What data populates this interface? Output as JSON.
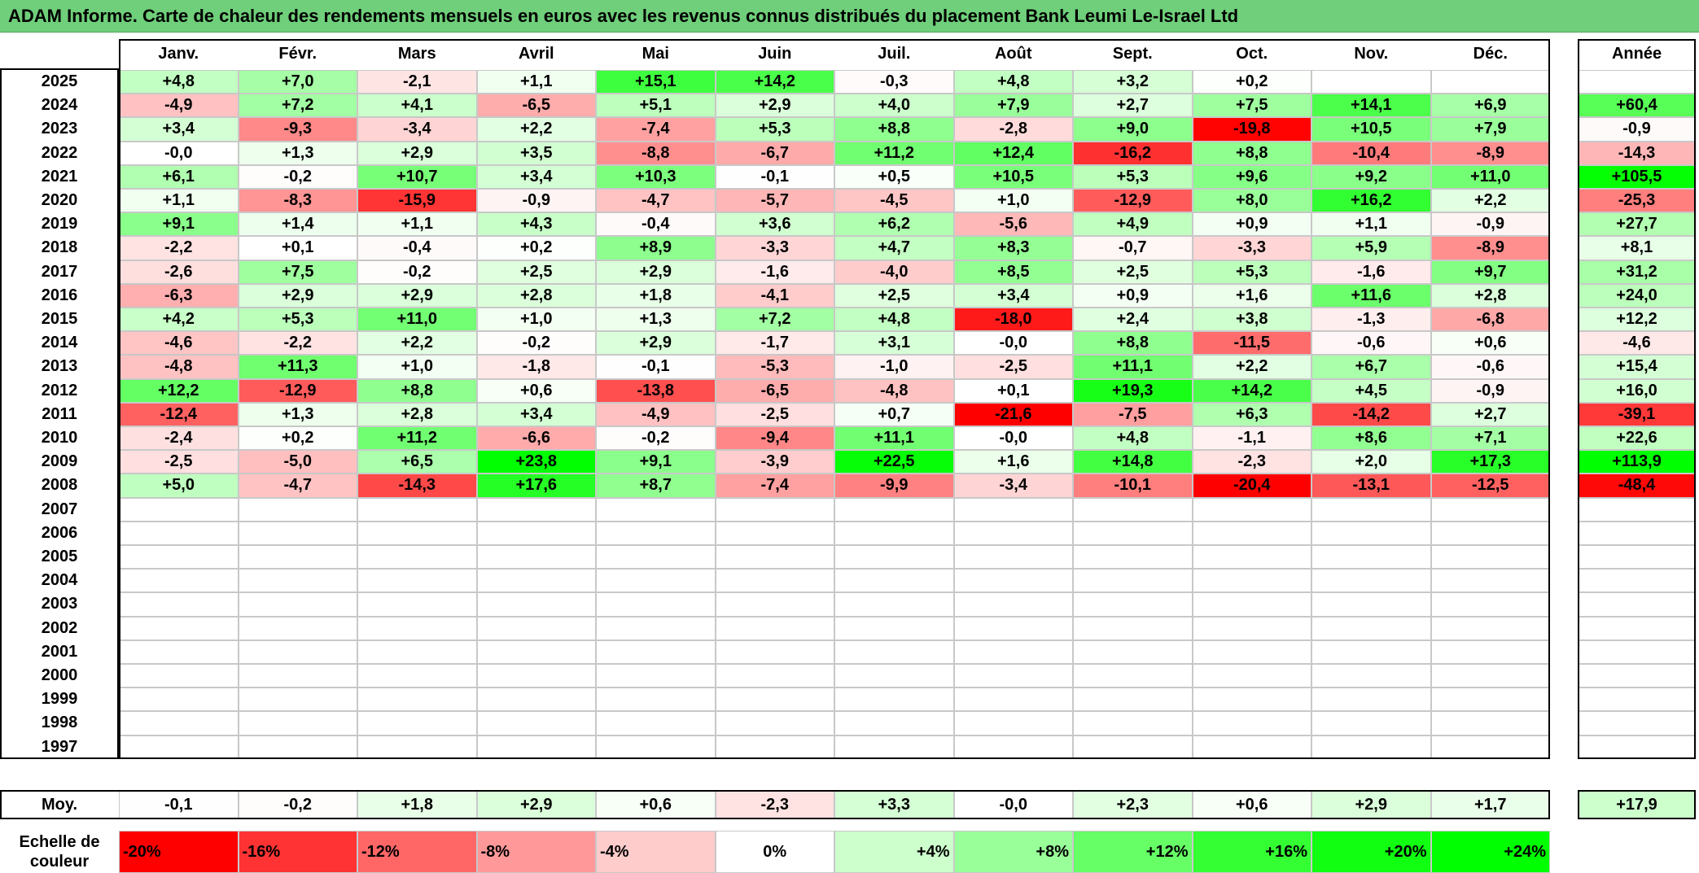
{
  "title": "ADAM Informe. Carte de chaleur des rendements mensuels en euros avec les revenus connus distribués du placement Bank Leumi Le-Israel Ltd",
  "chart_data": {
    "type": "heatmap",
    "months": [
      "Janv.",
      "Févr.",
      "Mars",
      "Avril",
      "Mai",
      "Juin",
      "Juil.",
      "Août",
      "Sept.",
      "Oct.",
      "Nov.",
      "Déc."
    ],
    "year_header": "Année",
    "rows": [
      {
        "year": "2025",
        "values": [
          "+4,8",
          "+7,0",
          "-2,1",
          "+1,1",
          "+15,1",
          "+14,2",
          "-0,3",
          "+4,8",
          "+3,2",
          "+0,2",
          "",
          ""
        ],
        "annual": ""
      },
      {
        "year": "2024",
        "values": [
          "-4,9",
          "+7,2",
          "+4,1",
          "-6,5",
          "+5,1",
          "+2,9",
          "+4,0",
          "+7,9",
          "+2,7",
          "+7,5",
          "+14,1",
          "+6,9"
        ],
        "annual": "+60,4"
      },
      {
        "year": "2023",
        "values": [
          "+3,4",
          "-9,3",
          "-3,4",
          "+2,2",
          "-7,4",
          "+5,3",
          "+8,8",
          "-2,8",
          "+9,0",
          "-19,8",
          "+10,5",
          "+7,9"
        ],
        "annual": "-0,9"
      },
      {
        "year": "2022",
        "values": [
          "-0,0",
          "+1,3",
          "+2,9",
          "+3,5",
          "-8,8",
          "-6,7",
          "+11,2",
          "+12,4",
          "-16,2",
          "+8,8",
          "-10,4",
          "-8,9"
        ],
        "annual": "-14,3"
      },
      {
        "year": "2021",
        "values": [
          "+6,1",
          "-0,2",
          "+10,7",
          "+3,4",
          "+10,3",
          "-0,1",
          "+0,5",
          "+10,5",
          "+5,3",
          "+9,6",
          "+9,2",
          "+11,0"
        ],
        "annual": "+105,5"
      },
      {
        "year": "2020",
        "values": [
          "+1,1",
          "-8,3",
          "-15,9",
          "-0,9",
          "-4,7",
          "-5,7",
          "-4,5",
          "+1,0",
          "-12,9",
          "+8,0",
          "+16,2",
          "+2,2"
        ],
        "annual": "-25,3"
      },
      {
        "year": "2019",
        "values": [
          "+9,1",
          "+1,4",
          "+1,1",
          "+4,3",
          "-0,4",
          "+3,6",
          "+6,2",
          "-5,6",
          "+4,9",
          "+0,9",
          "+1,1",
          "-0,9"
        ],
        "annual": "+27,7"
      },
      {
        "year": "2018",
        "values": [
          "-2,2",
          "+0,1",
          "-0,4",
          "+0,2",
          "+8,9",
          "-3,3",
          "+4,7",
          "+8,3",
          "-0,7",
          "-3,3",
          "+5,9",
          "-8,9"
        ],
        "annual": "+8,1"
      },
      {
        "year": "2017",
        "values": [
          "-2,6",
          "+7,5",
          "-0,2",
          "+2,5",
          "+2,9",
          "-1,6",
          "-4,0",
          "+8,5",
          "+2,5",
          "+5,3",
          "-1,6",
          "+9,7"
        ],
        "annual": "+31,2"
      },
      {
        "year": "2016",
        "values": [
          "-6,3",
          "+2,9",
          "+2,9",
          "+2,8",
          "+1,8",
          "-4,1",
          "+2,5",
          "+3,4",
          "+0,9",
          "+1,6",
          "+11,6",
          "+2,8"
        ],
        "annual": "+24,0"
      },
      {
        "year": "2015",
        "values": [
          "+4,2",
          "+5,3",
          "+11,0",
          "+1,0",
          "+1,3",
          "+7,2",
          "+4,8",
          "-18,0",
          "+2,4",
          "+3,8",
          "-1,3",
          "-6,8"
        ],
        "annual": "+12,2"
      },
      {
        "year": "2014",
        "values": [
          "-4,6",
          "-2,2",
          "+2,2",
          "-0,2",
          "+2,9",
          "-1,7",
          "+3,1",
          "-0,0",
          "+8,8",
          "-11,5",
          "-0,6",
          "+0,6"
        ],
        "annual": "-4,6"
      },
      {
        "year": "2013",
        "values": [
          "-4,8",
          "+11,3",
          "+1,0",
          "-1,8",
          "-0,1",
          "-5,3",
          "-1,0",
          "-2,5",
          "+11,1",
          "+2,2",
          "+6,7",
          "-0,6"
        ],
        "annual": "+15,4"
      },
      {
        "year": "2012",
        "values": [
          "+12,2",
          "-12,9",
          "+8,8",
          "+0,6",
          "-13,8",
          "-6,5",
          "-4,8",
          "+0,1",
          "+19,3",
          "+14,2",
          "+4,5",
          "-0,9"
        ],
        "annual": "+16,0"
      },
      {
        "year": "2011",
        "values": [
          "-12,4",
          "+1,3",
          "+2,8",
          "+3,4",
          "-4,9",
          "-2,5",
          "+0,7",
          "-21,6",
          "-7,5",
          "+6,3",
          "-14,2",
          "+2,7"
        ],
        "annual": "-39,1"
      },
      {
        "year": "2010",
        "values": [
          "-2,4",
          "+0,2",
          "+11,2",
          "-6,6",
          "-0,2",
          "-9,4",
          "+11,1",
          "-0,0",
          "+4,8",
          "-1,1",
          "+8,6",
          "+7,1"
        ],
        "annual": "+22,6"
      },
      {
        "year": "2009",
        "values": [
          "-2,5",
          "-5,0",
          "+6,5",
          "+23,8",
          "+9,1",
          "-3,9",
          "+22,5",
          "+1,6",
          "+14,8",
          "-2,3",
          "+2,0",
          "+17,3"
        ],
        "annual": "+113,9"
      },
      {
        "year": "2008",
        "values": [
          "+5,0",
          "-4,7",
          "-14,3",
          "+17,6",
          "+8,7",
          "-7,4",
          "-9,9",
          "-3,4",
          "-10,1",
          "-20,4",
          "-13,1",
          "-12,5"
        ],
        "annual": "-48,4"
      },
      {
        "year": "2007",
        "values": [
          "",
          "",
          "",
          "",
          "",
          "",
          "",
          "",
          "",
          "",
          "",
          ""
        ],
        "annual": ""
      },
      {
        "year": "2006",
        "values": [
          "",
          "",
          "",
          "",
          "",
          "",
          "",
          "",
          "",
          "",
          "",
          ""
        ],
        "annual": ""
      },
      {
        "year": "2005",
        "values": [
          "",
          "",
          "",
          "",
          "",
          "",
          "",
          "",
          "",
          "",
          "",
          ""
        ],
        "annual": ""
      },
      {
        "year": "2004",
        "values": [
          "",
          "",
          "",
          "",
          "",
          "",
          "",
          "",
          "",
          "",
          "",
          ""
        ],
        "annual": ""
      },
      {
        "year": "2003",
        "values": [
          "",
          "",
          "",
          "",
          "",
          "",
          "",
          "",
          "",
          "",
          "",
          ""
        ],
        "annual": ""
      },
      {
        "year": "2002",
        "values": [
          "",
          "",
          "",
          "",
          "",
          "",
          "",
          "",
          "",
          "",
          "",
          ""
        ],
        "annual": ""
      },
      {
        "year": "2001",
        "values": [
          "",
          "",
          "",
          "",
          "",
          "",
          "",
          "",
          "",
          "",
          "",
          ""
        ],
        "annual": ""
      },
      {
        "year": "2000",
        "values": [
          "",
          "",
          "",
          "",
          "",
          "",
          "",
          "",
          "",
          "",
          "",
          ""
        ],
        "annual": ""
      },
      {
        "year": "1999",
        "values": [
          "",
          "",
          "",
          "",
          "",
          "",
          "",
          "",
          "",
          "",
          "",
          ""
        ],
        "annual": ""
      },
      {
        "year": "1998",
        "values": [
          "",
          "",
          "",
          "",
          "",
          "",
          "",
          "",
          "",
          "",
          "",
          ""
        ],
        "annual": ""
      },
      {
        "year": "1997",
        "values": [
          "",
          "",
          "",
          "",
          "",
          "",
          "",
          "",
          "",
          "",
          "",
          ""
        ],
        "annual": ""
      }
    ],
    "average": {
      "label": "Moy.",
      "values": [
        "-0,1",
        "-0,2",
        "+1,8",
        "+2,9",
        "+0,6",
        "-2,3",
        "+3,3",
        "-0,0",
        "+2,3",
        "+0,6",
        "+2,9",
        "+1,7"
      ],
      "annual": "+17,9"
    },
    "color_scale": {
      "label_line1": "Echelle de",
      "label_line2": "couleur",
      "stops": [
        {
          "label": "-20%",
          "value": -20,
          "color": "#ff0000"
        },
        {
          "label": "-16%",
          "value": -16,
          "color": "#ff3333"
        },
        {
          "label": "-12%",
          "value": -12,
          "color": "#ff6666"
        },
        {
          "label": "-8%",
          "value": -8,
          "color": "#ff9999"
        },
        {
          "label": "-4%",
          "value": -4,
          "color": "#ffcccc"
        },
        {
          "label": "0%",
          "value": 0,
          "color": "#ffffff"
        },
        {
          "label": "+4%",
          "value": 4,
          "color": "#ccffcc"
        },
        {
          "label": "+8%",
          "value": 8,
          "color": "#99ff99"
        },
        {
          "label": "+12%",
          "value": 12,
          "color": "#66ff66"
        },
        {
          "label": "+16%",
          "value": 16,
          "color": "#33ff33"
        },
        {
          "label": "+20%",
          "value": 20,
          "color": "#11ff11"
        },
        {
          "label": "+24%",
          "value": 24,
          "color": "#00ff00"
        }
      ]
    },
    "annual_scale": {
      "min": -50,
      "max": 110
    }
  }
}
